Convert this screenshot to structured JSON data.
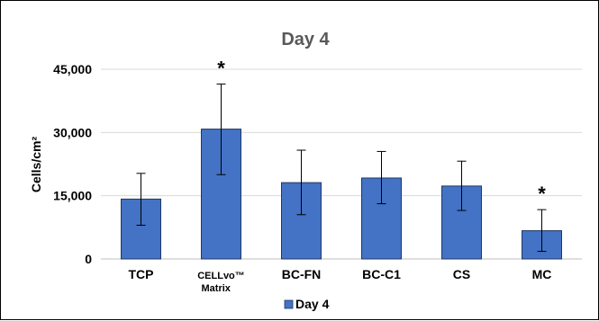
{
  "chart_data": {
    "type": "bar",
    "title": "Day 4",
    "ylabel": "Cells/cm²",
    "xlabel": "",
    "ylim": [
      0,
      45000
    ],
    "yticks": [
      0,
      15000,
      30000,
      45000
    ],
    "ytick_labels": [
      "0",
      "15,000",
      "30,000",
      "45,000"
    ],
    "categories": [
      "TCP",
      "CELLvo™\nMatrix",
      "BC-FN",
      "BC-C1",
      "CS",
      "MC"
    ],
    "series": [
      {
        "name": "Day 4",
        "color": "#4472C4",
        "values": [
          14200,
          30800,
          18100,
          19200,
          17300,
          6700
        ],
        "error_low": [
          6200,
          10800,
          7600,
          6100,
          5800,
          4900
        ],
        "error_high": [
          6100,
          10700,
          7700,
          6300,
          5900,
          5000
        ]
      }
    ],
    "annotations": [
      {
        "category": "CELLvo™\nMatrix",
        "text": "*"
      },
      {
        "category": "MC",
        "text": "*"
      }
    ],
    "legend": {
      "position": "bottom"
    },
    "grid": true
  }
}
